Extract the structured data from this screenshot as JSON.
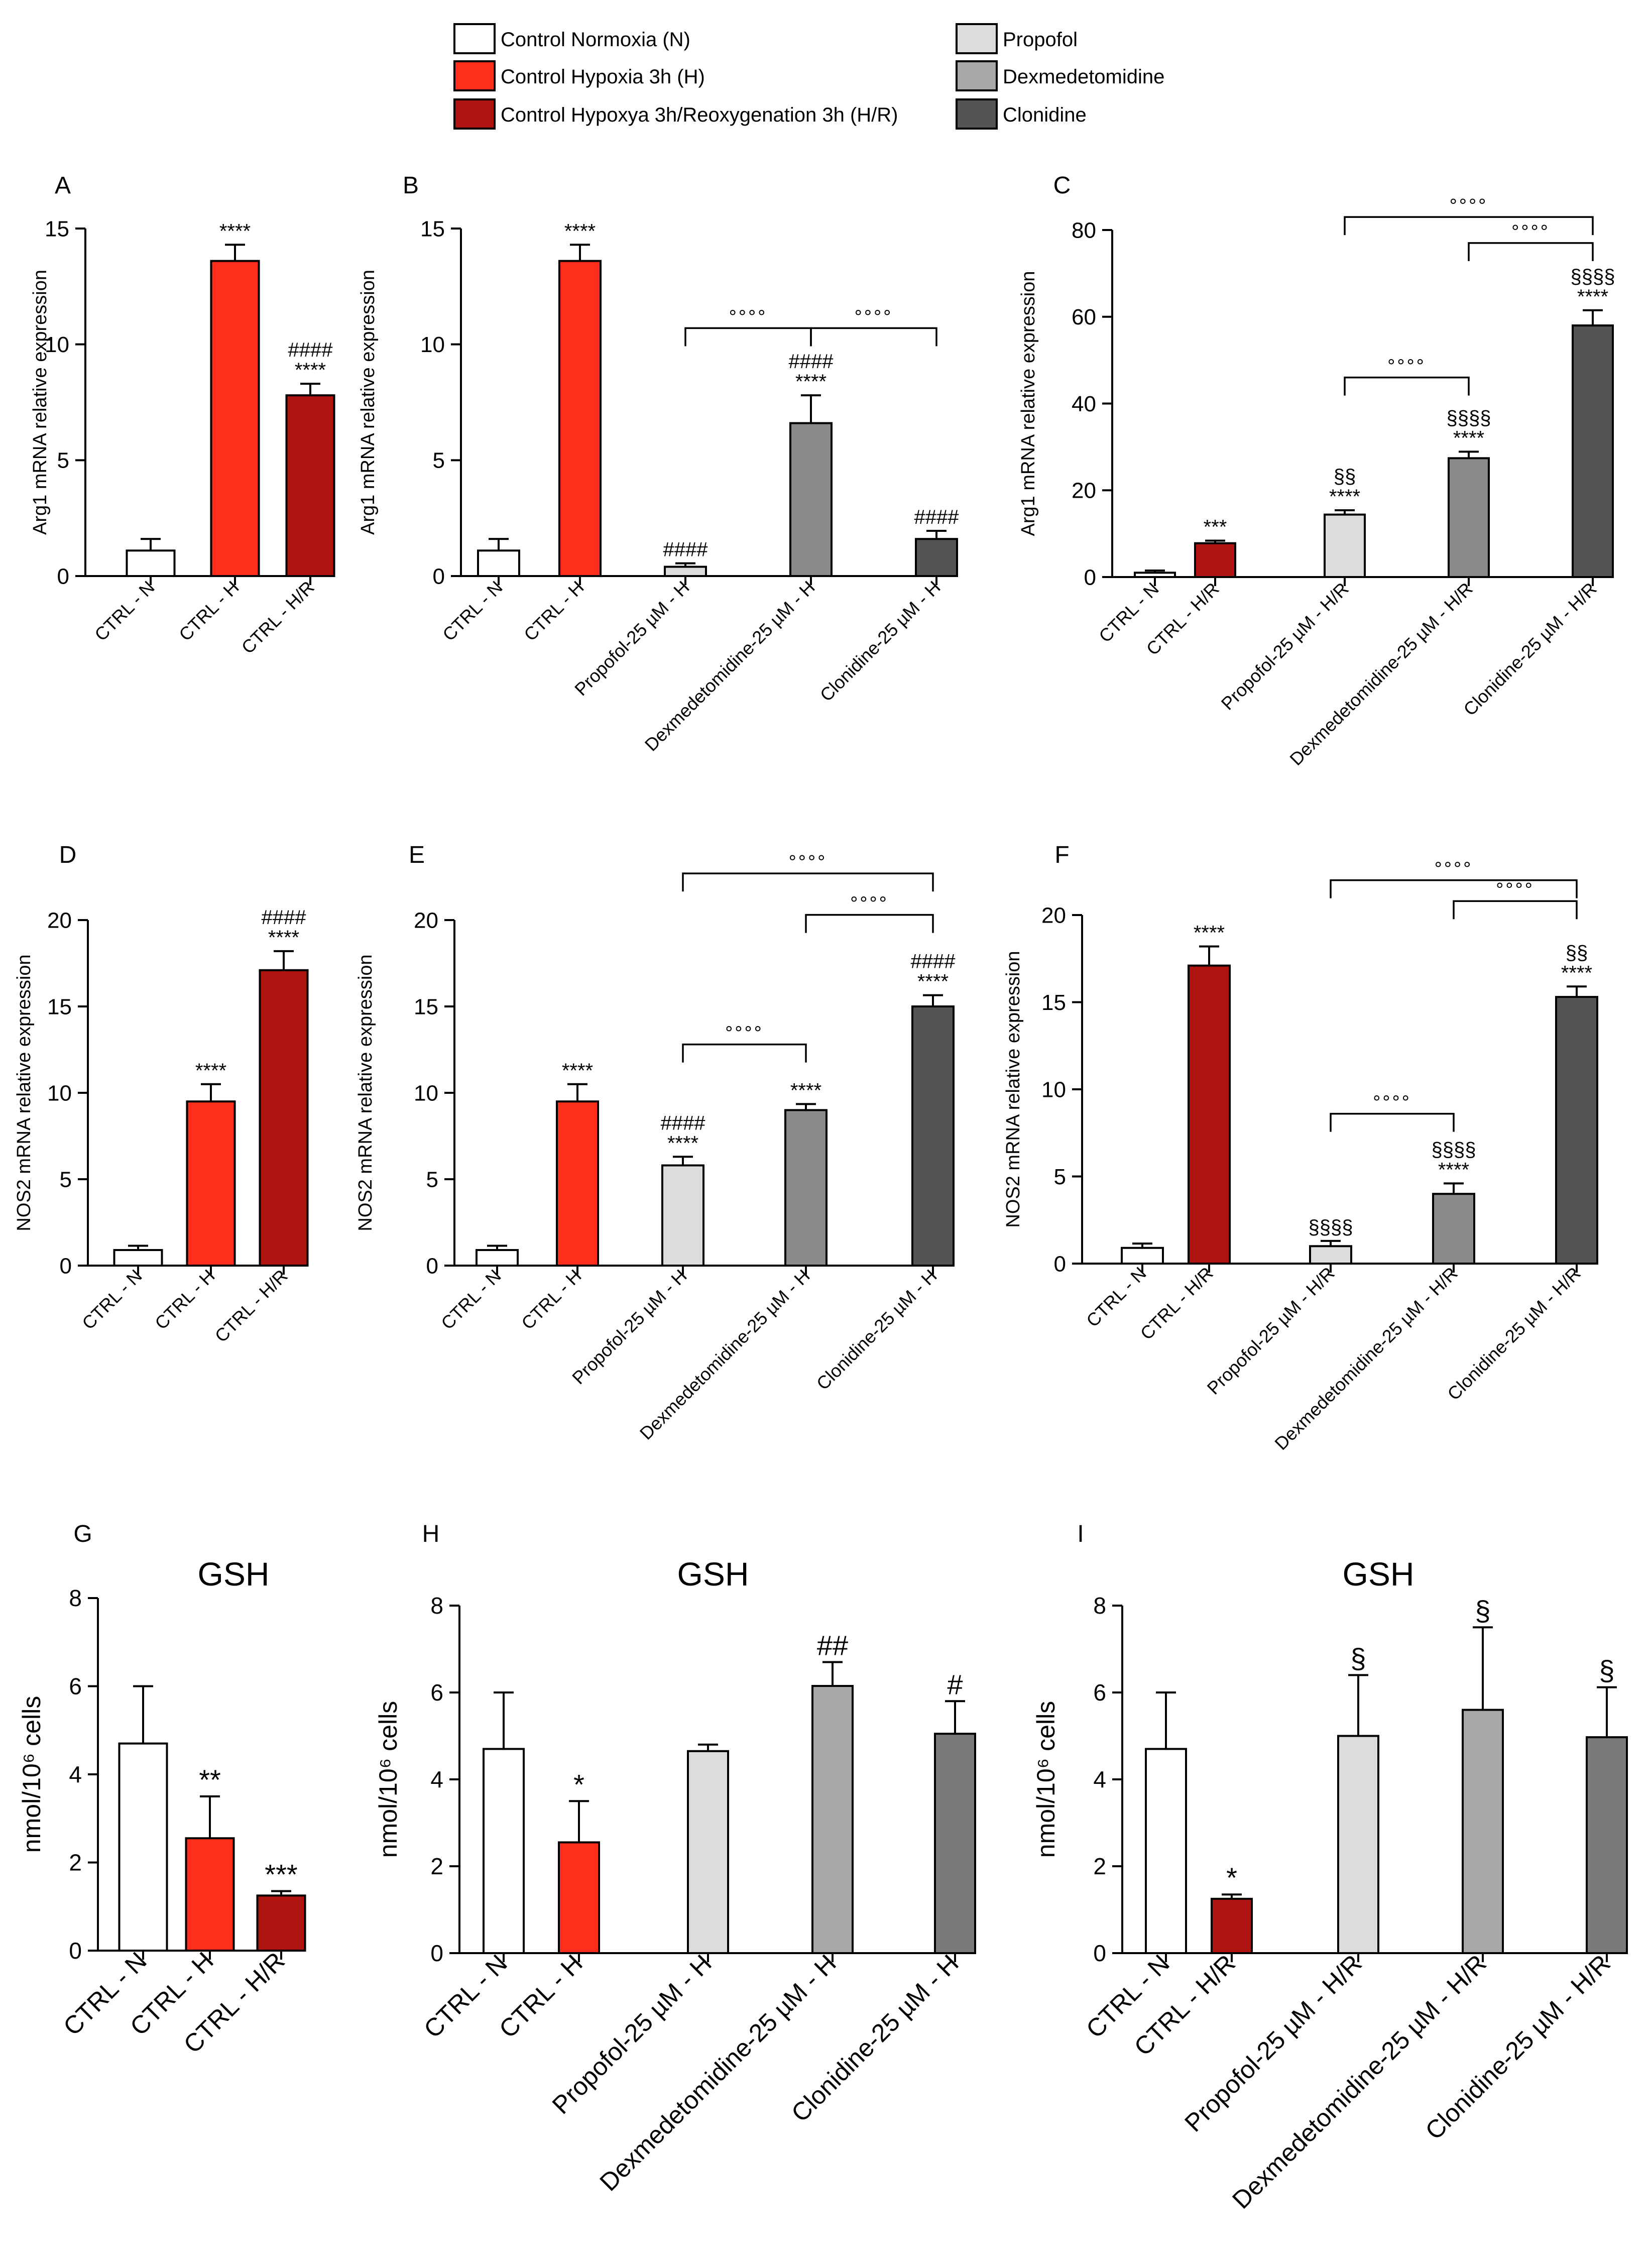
{
  "colors": {
    "N": "#ffffff",
    "H": "#ff2d1c",
    "HR": "#b01410",
    "Propofol_light": "#dcdcdc",
    "Dex_A": "#8a8a8a",
    "Clo_A": "#545454",
    "Dex_G": "#a8a8a8",
    "Clo_G": "#7a7a7a"
  },
  "legend": [
    {
      "label": "Control Normoxia (N)",
      "color": "#ffffff"
    },
    {
      "label": "Control Hypoxia 3h (H)",
      "color": "#ff2d1c"
    },
    {
      "label": "Control Hypoxya 3h/Reoxygenation 3h (H/R)",
      "color": "#b01410"
    },
    {
      "label": "Propofol",
      "color": "#dcdcdc"
    },
    {
      "label": "Dexmedetomidine",
      "color": "#a8a8a8"
    },
    {
      "label": "Clonidine",
      "color": "#545454"
    }
  ],
  "chart_data": [
    {
      "panel": "A",
      "type": "bar",
      "title": "",
      "ylabel": "Arg1 mRNA relative expression",
      "ylim": [
        0,
        15
      ],
      "yticks": [
        0,
        5,
        10,
        15
      ],
      "categories": [
        "CTRL - N",
        "CTRL - H",
        "CTRL - H/R"
      ],
      "values": [
        1.1,
        13.6,
        7.8
      ],
      "errors": [
        0.5,
        0.7,
        0.5
      ],
      "colors": [
        "#ffffff",
        "#ff2d1c",
        "#b01410"
      ],
      "annotations": [
        [],
        [
          "****"
        ],
        [
          "####",
          "****"
        ]
      ],
      "brackets": []
    },
    {
      "panel": "B",
      "type": "bar",
      "title": "",
      "ylabel": "Arg1 mRNA relative expression",
      "ylim": [
        0,
        15
      ],
      "yticks": [
        0,
        5,
        10,
        15
      ],
      "categories": [
        "CTRL - N",
        "CTRL - H",
        "Propofol-25 µM - H",
        "Dexmedetomidine-25 µM - H",
        "Clonidine-25 µM - H"
      ],
      "values": [
        1.1,
        13.6,
        0.4,
        6.6,
        1.6
      ],
      "errors": [
        0.5,
        0.7,
        0.15,
        1.2,
        0.35
      ],
      "colors": [
        "#ffffff",
        "#ff2d1c",
        "#dcdcdc",
        "#8a8a8a",
        "#545454"
      ],
      "annotations": [
        [],
        [
          "****"
        ],
        [
          "####"
        ],
        [
          "####",
          "****"
        ],
        [
          "####"
        ]
      ],
      "brackets": [
        {
          "from": 2,
          "to": 3,
          "y": 10.7,
          "label": "°°°°"
        },
        {
          "from": 3,
          "to": 4,
          "y": 10.7,
          "label": "°°°°"
        }
      ]
    },
    {
      "panel": "C",
      "type": "bar",
      "title": "",
      "ylabel": "Arg1 mRNA relative expression",
      "ylim": [
        0,
        80
      ],
      "yticks": [
        0,
        20,
        40,
        60,
        80
      ],
      "categories": [
        "CTRL - N",
        "CTRL - H/R",
        "Propofol-25 µM - H/R",
        "Dexmedetomidine-25 µM - H/R",
        "Clonidine-25 µM - H/R"
      ],
      "values": [
        1.0,
        7.8,
        14.4,
        27.4,
        58.0
      ],
      "errors": [
        0.5,
        0.6,
        1.0,
        1.5,
        3.5
      ],
      "colors": [
        "#ffffff",
        "#b01410",
        "#dcdcdc",
        "#8a8a8a",
        "#545454"
      ],
      "annotations": [
        [],
        [
          "***"
        ],
        [
          "§§",
          "****"
        ],
        [
          "§§§§",
          "****"
        ],
        [
          "§§§§",
          "****"
        ]
      ],
      "brackets": [
        {
          "from": 2,
          "to": 4,
          "y": 83,
          "label": "°°°°"
        },
        {
          "from": 3,
          "to": 4,
          "y": 77,
          "label": "°°°°"
        },
        {
          "from": 2,
          "to": 3,
          "y": 46,
          "label": "°°°°"
        }
      ]
    },
    {
      "panel": "D",
      "type": "bar",
      "title": "",
      "ylabel": "NOS2 mRNA relative expression",
      "ylim": [
        0,
        20
      ],
      "yticks": [
        0,
        5,
        10,
        15,
        20
      ],
      "categories": [
        "CTRL - N",
        "CTRL - H",
        "CTRL - H/R"
      ],
      "values": [
        0.9,
        9.5,
        17.1
      ],
      "errors": [
        0.25,
        1.0,
        1.1
      ],
      "colors": [
        "#ffffff",
        "#ff2d1c",
        "#b01410"
      ],
      "annotations": [
        [],
        [
          "****"
        ],
        [
          "####",
          "****"
        ]
      ],
      "brackets": []
    },
    {
      "panel": "E",
      "type": "bar",
      "title": "",
      "ylabel": "NOS2 mRNA relative expression",
      "ylim": [
        0,
        20
      ],
      "yticks": [
        0,
        5,
        10,
        15,
        20
      ],
      "categories": [
        "CTRL - N",
        "CTRL - H",
        "Propofol-25 µM - H",
        "Dexmedetomidine-25 µM - H",
        "Clonidine-25 µM - H"
      ],
      "values": [
        0.9,
        9.5,
        5.8,
        9.0,
        15.0
      ],
      "errors": [
        0.25,
        1.0,
        0.5,
        0.35,
        0.65
      ],
      "colors": [
        "#ffffff",
        "#ff2d1c",
        "#dcdcdc",
        "#8a8a8a",
        "#545454"
      ],
      "annotations": [
        [],
        [
          "****"
        ],
        [
          "####",
          "****"
        ],
        [
          "****"
        ],
        [
          "####",
          "****"
        ]
      ],
      "brackets": [
        {
          "from": 2,
          "to": 4,
          "y": 22.7,
          "label": "°°°°"
        },
        {
          "from": 3,
          "to": 4,
          "y": 20.3,
          "label": "°°°°"
        },
        {
          "from": 2,
          "to": 3,
          "y": 12.8,
          "label": "°°°°"
        }
      ]
    },
    {
      "panel": "F",
      "type": "bar",
      "title": "",
      "ylabel": "NOS2 mRNA relative expression",
      "ylim": [
        0,
        20
      ],
      "yticks": [
        0,
        5,
        10,
        15,
        20
      ],
      "categories": [
        "CTRL - N",
        "CTRL - H/R",
        "Propofol-25 µM - H/R",
        "Dexmedetomidine-25 µM - H/R",
        "Clonidine-25 µM - H/R"
      ],
      "values": [
        0.9,
        17.1,
        1.0,
        4.0,
        15.3
      ],
      "errors": [
        0.25,
        1.1,
        0.3,
        0.6,
        0.6
      ],
      "colors": [
        "#ffffff",
        "#b01410",
        "#dcdcdc",
        "#8a8a8a",
        "#545454"
      ],
      "annotations": [
        [],
        [
          "****"
        ],
        [
          "§§§§"
        ],
        [
          "§§§§",
          "****"
        ],
        [
          "§§",
          "****"
        ]
      ],
      "brackets": [
        {
          "from": 2,
          "to": 4,
          "y": 22.0,
          "label": "°°°°"
        },
        {
          "from": 3,
          "to": 4,
          "y": 20.8,
          "label": "°°°°"
        },
        {
          "from": 2,
          "to": 3,
          "y": 8.6,
          "label": "°°°°"
        }
      ]
    },
    {
      "panel": "G",
      "type": "bar",
      "title": "GSH",
      "ylabel": "nmol/10⁶ cells",
      "ylim": [
        0,
        8
      ],
      "yticks": [
        0,
        2,
        4,
        6,
        8
      ],
      "categories": [
        "CTRL - N",
        "CTRL - H",
        "CTRL - H/R"
      ],
      "values": [
        4.7,
        2.55,
        1.25
      ],
      "errors": [
        1.3,
        0.95,
        0.1
      ],
      "colors": [
        "#ffffff",
        "#ff2d1c",
        "#b01410"
      ],
      "annotations": [
        [],
        [
          "**"
        ],
        [
          "***"
        ]
      ],
      "brackets": []
    },
    {
      "panel": "H",
      "type": "bar",
      "title": "GSH",
      "ylabel": "nmol/10⁶ cells",
      "ylim": [
        0,
        8
      ],
      "yticks": [
        0,
        2,
        4,
        6,
        8
      ],
      "categories": [
        "CTRL - N",
        "CTRL - H",
        "Propofol-25 µM - H",
        "Dexmedetomidine-25 µM - H",
        "Clonidine-25 µM - H"
      ],
      "values": [
        4.7,
        2.55,
        4.65,
        6.15,
        5.05
      ],
      "errors": [
        1.3,
        0.95,
        0.15,
        0.55,
        0.75
      ],
      "colors": [
        "#ffffff",
        "#ff2d1c",
        "#dcdcdc",
        "#a8a8a8",
        "#7a7a7a"
      ],
      "annotations": [
        [],
        [
          "*"
        ],
        [],
        [
          "##"
        ],
        [
          "#"
        ]
      ],
      "brackets": []
    },
    {
      "panel": "I",
      "type": "bar",
      "title": "GSH",
      "ylabel": "nmol/10⁶ cells",
      "ylim": [
        0,
        8
      ],
      "yticks": [
        0,
        2,
        4,
        6,
        8
      ],
      "categories": [
        "CTRL - N",
        "CTRL - H/R",
        "Propofol-25 µM - H/R",
        "Dexmedetomidine-25 µM - H/R",
        "Clonidine-25 µM - H/R"
      ],
      "values": [
        4.7,
        1.25,
        5.0,
        5.6,
        4.97
      ],
      "errors": [
        1.3,
        0.1,
        1.4,
        1.9,
        1.15
      ],
      "colors": [
        "#ffffff",
        "#b01410",
        "#dcdcdc",
        "#a8a8a8",
        "#7a7a7a"
      ],
      "annotations": [
        [],
        [
          "*"
        ],
        [
          "§"
        ],
        [
          "§"
        ],
        [
          "§"
        ]
      ],
      "brackets": []
    }
  ]
}
